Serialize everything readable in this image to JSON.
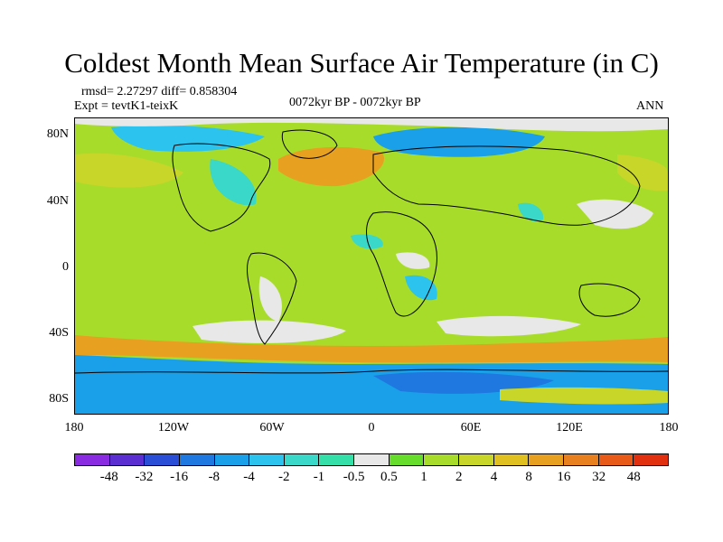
{
  "title": "Coldest Month Mean Surface Air Temperature (in C)",
  "stats": "rmsd= 2.27297 diff= 0.858304",
  "expt": "Expt = tevtK1-teixK",
  "period": "0072kyr BP - 0072kyr BP",
  "season": "ANN",
  "lat_labels": [
    "80N",
    "40N",
    "0",
    "40S",
    "80S"
  ],
  "lon_labels": [
    "180",
    "120W",
    "60W",
    "0",
    "60E",
    "120E",
    "180"
  ],
  "colorbar": {
    "colors": [
      "#8a2be2",
      "#5a2ed0",
      "#2a4fd6",
      "#1e78e0",
      "#1aa0e8",
      "#2cc4ee",
      "#3ad8c8",
      "#34e0a8",
      "#e8e8e8",
      "#66dd2a",
      "#a8dc2a",
      "#c8d62a",
      "#e0c020",
      "#e8a020",
      "#e88020",
      "#e85a18",
      "#e03010"
    ],
    "labels": [
      "-48",
      "-32",
      "-16",
      "-8",
      "-4",
      "-2",
      "-1",
      "-0.5",
      "0.5",
      "1",
      "2",
      "4",
      "8",
      "16",
      "32",
      "48"
    ]
  },
  "map_colors": {
    "base": "#a8dc2a",
    "warm": "#c8d62a",
    "hot": "#e8a020",
    "neutral": "#e8e8e8",
    "cool": "#3ad8c8",
    "cold": "#2cc4ee",
    "colder": "#1aa0e8",
    "coldest": "#1e78e0",
    "green": "#66dd2a",
    "coast": "#000000"
  }
}
